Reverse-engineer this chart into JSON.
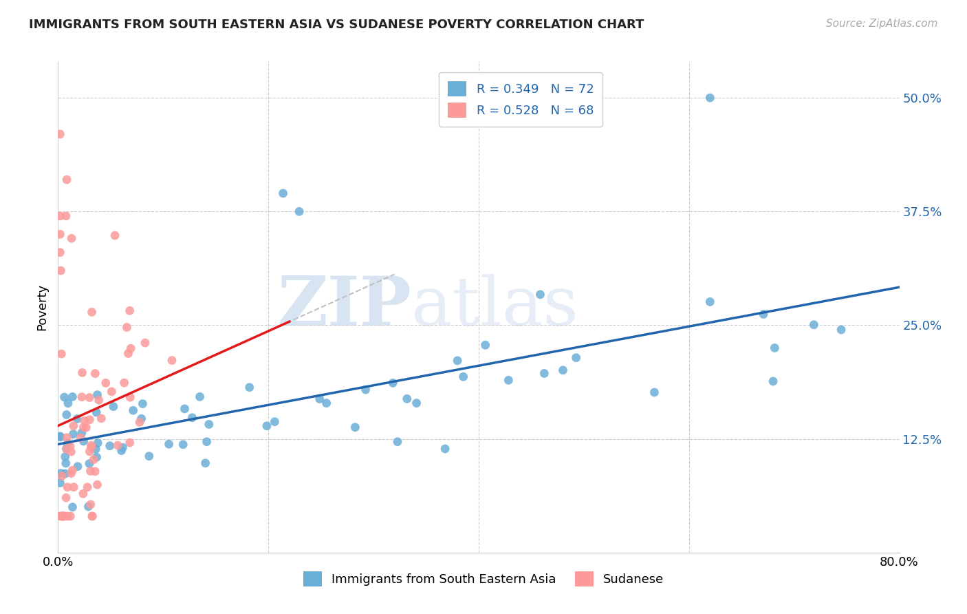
{
  "title": "IMMIGRANTS FROM SOUTH EASTERN ASIA VS SUDANESE POVERTY CORRELATION CHART",
  "source": "Source: ZipAtlas.com",
  "ylabel": "Poverty",
  "yticks": [
    0.0,
    0.125,
    0.25,
    0.375,
    0.5
  ],
  "ytick_labels": [
    "",
    "12.5%",
    "25.0%",
    "37.5%",
    "50.0%"
  ],
  "xlim": [
    0.0,
    0.8
  ],
  "ylim": [
    0.0,
    0.54
  ],
  "legend_r1": "R = 0.349",
  "legend_n1": "N = 72",
  "legend_r2": "R = 0.528",
  "legend_n2": "N = 68",
  "legend_label1": "Immigrants from South Eastern Asia",
  "legend_label2": "Sudanese",
  "blue_color": "#6baed6",
  "pink_color": "#fb9a99",
  "blue_line_color": "#2166ac",
  "pink_line_color": "#e31a1c",
  "watermark_zip": "ZIP",
  "watermark_atlas": "atlas",
  "background_color": "#ffffff",
  "grid_color": "#cccccc"
}
